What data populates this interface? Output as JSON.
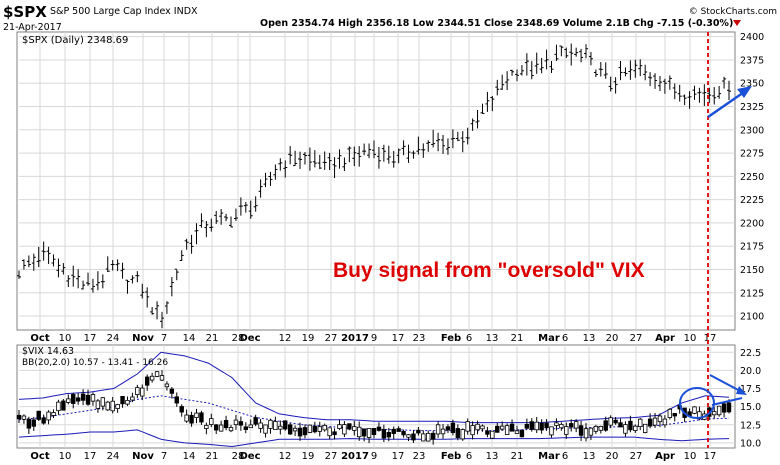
{
  "header": {
    "ticker": "$SPX",
    "name": "S&P 500 Large Cap Index",
    "exchange": "INDX",
    "date": "21-Apr-2017",
    "watermark": "© StockCharts.com",
    "open_label": "Open",
    "open": "2354.74",
    "high_label": "High",
    "high": "2356.18",
    "low_label": "Low",
    "low": "2344.51",
    "close_label": "Close",
    "close": "2348.69",
    "volume_label": "Volume",
    "volume": "2.1B",
    "chg_label": "Chg",
    "chg": "-7.15 (-0.30%)"
  },
  "colors": {
    "bars": "#000000",
    "grid": "#d8d8d8",
    "bollinger": "#1a1ab8",
    "annotation": "#dd0000",
    "arrow": "#1a4fd8"
  },
  "chart_data": [
    {
      "type": "line",
      "style": "ohlc-bars",
      "legend": "$SPX (Daily) 2348.69",
      "annotation": "Buy signal from \"oversold\" VIX",
      "x": [
        "Sep 26",
        "Oct 3",
        "Oct 10",
        "Oct 17",
        "Oct 24",
        "Oct 31",
        "Nov 7",
        "Nov 14",
        "Nov 21",
        "Nov 28",
        "Dec 5",
        "Dec 12",
        "Dec 19",
        "Dec 27",
        "Jan 3",
        "Jan 9",
        "Jan 17",
        "Jan 23",
        "Jan 30",
        "Feb 6",
        "Feb 13",
        "Feb 21",
        "Feb 27",
        "Mar 6",
        "Mar 13",
        "Mar 20",
        "Mar 27",
        "Apr 3",
        "Apr 10",
        "Apr 17",
        "Apr 21"
      ],
      "series": [
        {
          "values": [
            2150,
            2168,
            2145,
            2130,
            2150,
            2135,
            2095,
            2175,
            2200,
            2205,
            2220,
            2265,
            2270,
            2262,
            2270,
            2278,
            2270,
            2282,
            2285,
            2295,
            2335,
            2365,
            2365,
            2382,
            2378,
            2350,
            2365,
            2358,
            2340,
            2340,
            2349
          ]
        }
      ],
      "xticks": [
        "Oct",
        "10",
        "17",
        "24",
        "Nov",
        "7",
        "14",
        "21",
        "28",
        "Dec",
        "12",
        "19",
        "27",
        "2017",
        "9",
        "17",
        "23",
        "Feb",
        "6",
        "13",
        "21",
        "Mar",
        "6",
        "13",
        "20",
        "27",
        "Apr",
        "10",
        "17"
      ],
      "ylim": [
        2085,
        2405
      ],
      "yticks": [
        2100,
        2125,
        2150,
        2175,
        2200,
        2225,
        2250,
        2275,
        2300,
        2325,
        2350,
        2375,
        2400
      ],
      "grid": true
    },
    {
      "type": "line",
      "style": "candlestick",
      "legend": "$VIX 14.63",
      "bb_legend": "BB(20,2.0) 10.57 - 13.41 - 16.26",
      "x": [
        "Sep 26",
        "Oct 3",
        "Oct 10",
        "Oct 17",
        "Oct 24",
        "Oct 31",
        "Nov 7",
        "Nov 14",
        "Nov 21",
        "Nov 28",
        "Dec 5",
        "Dec 12",
        "Dec 19",
        "Dec 27",
        "Jan 3",
        "Jan 9",
        "Jan 17",
        "Jan 23",
        "Jan 30",
        "Feb 6",
        "Feb 13",
        "Feb 21",
        "Feb 27",
        "Mar 6",
        "Mar 13",
        "Mar 20",
        "Mar 27",
        "Apr 3",
        "Apr 10",
        "Apr 17",
        "Apr 21"
      ],
      "series": [
        {
          "name": "VIX",
          "values": [
            13.0,
            13.5,
            15.5,
            16.0,
            14.5,
            17.0,
            19.5,
            14.0,
            12.5,
            12.2,
            12.5,
            12.0,
            11.8,
            11.7,
            12.0,
            11.5,
            11.4,
            11.3,
            11.5,
            11.7,
            11.6,
            11.8,
            12.0,
            12.3,
            11.9,
            12.5,
            12.3,
            12.8,
            14.8,
            14.0,
            14.6
          ]
        },
        {
          "name": "BB upper",
          "values": [
            16.0,
            16.2,
            16.8,
            17.0,
            17.5,
            19.5,
            22.5,
            22.0,
            21.0,
            19.0,
            15.5,
            14.0,
            13.5,
            13.2,
            13.2,
            13.0,
            13.0,
            13.0,
            13.0,
            12.8,
            12.8,
            12.8,
            12.8,
            13.0,
            13.2,
            13.4,
            13.5,
            13.8,
            15.5,
            16.5,
            16.3
          ]
        },
        {
          "name": "BB middle",
          "values": [
            13.2,
            13.5,
            14.0,
            14.5,
            15.0,
            16.0,
            16.5,
            16.0,
            15.5,
            14.5,
            13.5,
            13.0,
            12.5,
            12.3,
            12.0,
            11.9,
            11.8,
            11.7,
            11.7,
            11.7,
            11.7,
            11.8,
            11.9,
            12.0,
            12.1,
            12.2,
            12.3,
            12.4,
            12.8,
            13.3,
            13.4
          ]
        },
        {
          "name": "BB lower",
          "values": [
            10.8,
            11.0,
            11.2,
            11.5,
            11.5,
            11.8,
            10.5,
            10.0,
            9.8,
            9.5,
            10.0,
            10.5,
            10.5,
            10.5,
            10.6,
            10.5,
            10.5,
            10.5,
            10.5,
            10.6,
            10.6,
            10.6,
            10.6,
            10.7,
            10.8,
            10.8,
            10.8,
            10.5,
            10.3,
            10.5,
            10.6
          ]
        }
      ],
      "xticks": [
        "Oct",
        "10",
        "17",
        "24",
        "Nov",
        "7",
        "14",
        "21",
        "28",
        "Dec",
        "12",
        "19",
        "27",
        "2017",
        "9",
        "17",
        "23",
        "Feb",
        "6",
        "13",
        "21",
        "Mar",
        "6",
        "13",
        "20",
        "27",
        "Apr",
        "10",
        "17"
      ],
      "ylim": [
        9.3,
        23.5
      ],
      "yticks": [
        10.0,
        12.5,
        15.0,
        17.5,
        20.0,
        22.5
      ],
      "grid": true
    }
  ]
}
